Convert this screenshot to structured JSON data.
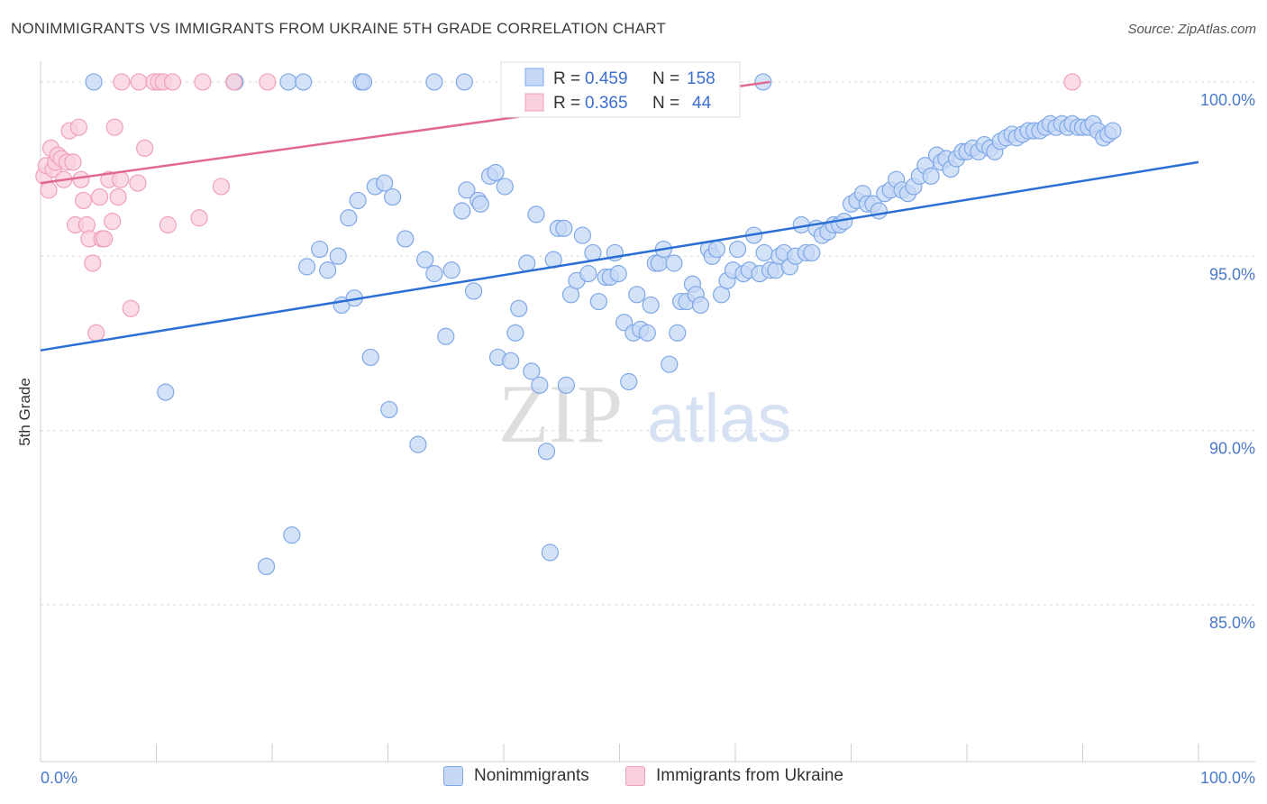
{
  "chart_data": {
    "type": "scatter",
    "title": "NONIMMIGRANTS VS IMMIGRANTS FROM UKRAINE 5TH GRADE CORRELATION CHART",
    "source": "Source: ZipAtlas.com",
    "xlabel": "",
    "ylabel": "5th Grade",
    "xlim": [
      0,
      100
    ],
    "ylim": [
      80.5,
      100.8
    ],
    "x_tick_labels": [
      "0.0%",
      "100.0%"
    ],
    "y_ticks": [
      {
        "value": 100,
        "label": "100.0%"
      },
      {
        "value": 95,
        "label": "95.0%"
      },
      {
        "value": 90,
        "label": "90.0%"
      },
      {
        "value": 85,
        "label": "85.0%"
      }
    ],
    "watermark": "ZIPatlas",
    "legend": [
      {
        "r_label": "R =",
        "r_value": "0.459",
        "n_label": "N =",
        "n_value": "158"
      },
      {
        "r_label": "R =",
        "r_value": "0.365",
        "n_label": "N =",
        "n_value": "44"
      }
    ],
    "series": [
      {
        "name": "Nonimmigrants",
        "color": "#7fa8e8",
        "fill": "#c5d8f5",
        "line_color": "#2b6ed4",
        "trend": {
          "x0": 0,
          "y0": 92.3,
          "x1": 100,
          "y1": 97.7
        },
        "points": [
          [
            4.6,
            100
          ],
          [
            16.8,
            100
          ],
          [
            21.4,
            100
          ],
          [
            22.7,
            100
          ],
          [
            27.7,
            100
          ],
          [
            27.9,
            100
          ],
          [
            34.0,
            100
          ],
          [
            36.6,
            100
          ],
          [
            46.0,
            100
          ],
          [
            62.4,
            100
          ],
          [
            10.8,
            91.1
          ],
          [
            19.5,
            86.1
          ],
          [
            21.7,
            87.0
          ],
          [
            23.0,
            94.7
          ],
          [
            24.1,
            95.2
          ],
          [
            24.8,
            94.6
          ],
          [
            25.7,
            95.0
          ],
          [
            26.0,
            93.6
          ],
          [
            26.6,
            96.1
          ],
          [
            27.1,
            93.8
          ],
          [
            27.4,
            96.6
          ],
          [
            28.5,
            92.1
          ],
          [
            28.9,
            97.0
          ],
          [
            29.7,
            97.1
          ],
          [
            30.1,
            90.6
          ],
          [
            30.4,
            96.7
          ],
          [
            31.5,
            95.5
          ],
          [
            32.6,
            89.6
          ],
          [
            33.2,
            94.9
          ],
          [
            34.0,
            94.5
          ],
          [
            35.0,
            92.7
          ],
          [
            35.5,
            94.6
          ],
          [
            36.4,
            96.3
          ],
          [
            36.8,
            96.9
          ],
          [
            37.4,
            94.0
          ],
          [
            37.8,
            96.6
          ],
          [
            38.0,
            96.5
          ],
          [
            38.8,
            97.3
          ],
          [
            39.3,
            97.4
          ],
          [
            39.5,
            92.1
          ],
          [
            40.1,
            97.0
          ],
          [
            40.6,
            92.0
          ],
          [
            41.0,
            92.8
          ],
          [
            41.3,
            93.5
          ],
          [
            42.0,
            94.8
          ],
          [
            42.4,
            91.7
          ],
          [
            42.8,
            96.2
          ],
          [
            43.1,
            91.3
          ],
          [
            43.7,
            89.4
          ],
          [
            44.0,
            86.5
          ],
          [
            44.3,
            94.9
          ],
          [
            44.7,
            95.8
          ],
          [
            45.2,
            95.8
          ],
          [
            45.4,
            91.3
          ],
          [
            45.8,
            93.9
          ],
          [
            46.3,
            94.3
          ],
          [
            46.8,
            95.6
          ],
          [
            47.3,
            94.5
          ],
          [
            47.7,
            95.1
          ],
          [
            48.2,
            93.7
          ],
          [
            48.8,
            94.4
          ],
          [
            49.2,
            94.4
          ],
          [
            49.6,
            95.1
          ],
          [
            49.9,
            94.5
          ],
          [
            50.4,
            93.1
          ],
          [
            50.8,
            91.4
          ],
          [
            51.2,
            92.8
          ],
          [
            51.5,
            93.9
          ],
          [
            51.8,
            92.9
          ],
          [
            52.4,
            92.8
          ],
          [
            52.7,
            93.6
          ],
          [
            53.1,
            94.8
          ],
          [
            53.4,
            94.8
          ],
          [
            53.8,
            95.2
          ],
          [
            54.3,
            91.9
          ],
          [
            54.7,
            94.8
          ],
          [
            55.0,
            92.8
          ],
          [
            55.3,
            93.7
          ],
          [
            55.8,
            93.7
          ],
          [
            56.3,
            94.2
          ],
          [
            56.6,
            93.9
          ],
          [
            57.0,
            93.6
          ],
          [
            57.7,
            95.2
          ],
          [
            58.0,
            95.0
          ],
          [
            58.4,
            95.2
          ],
          [
            58.8,
            93.9
          ],
          [
            59.3,
            94.3
          ],
          [
            59.8,
            94.6
          ],
          [
            60.2,
            95.2
          ],
          [
            60.7,
            94.5
          ],
          [
            61.2,
            94.6
          ],
          [
            61.6,
            95.6
          ],
          [
            62.1,
            94.5
          ],
          [
            62.5,
            95.1
          ],
          [
            63.0,
            94.6
          ],
          [
            63.5,
            94.6
          ],
          [
            63.8,
            95.0
          ],
          [
            64.2,
            95.1
          ],
          [
            64.7,
            94.7
          ],
          [
            65.2,
            95.0
          ],
          [
            65.7,
            95.9
          ],
          [
            66.1,
            95.1
          ],
          [
            66.6,
            95.1
          ],
          [
            67.0,
            95.8
          ],
          [
            67.5,
            95.6
          ],
          [
            68.0,
            95.7
          ],
          [
            68.5,
            95.9
          ],
          [
            69.0,
            95.9
          ],
          [
            69.4,
            96.0
          ],
          [
            70.0,
            96.5
          ],
          [
            70.5,
            96.6
          ],
          [
            71.0,
            96.8
          ],
          [
            71.4,
            96.5
          ],
          [
            71.9,
            96.5
          ],
          [
            72.4,
            96.3
          ],
          [
            72.9,
            96.8
          ],
          [
            73.4,
            96.9
          ],
          [
            73.9,
            97.2
          ],
          [
            74.4,
            96.9
          ],
          [
            74.9,
            96.8
          ],
          [
            75.4,
            97.0
          ],
          [
            75.9,
            97.3
          ],
          [
            76.4,
            97.6
          ],
          [
            76.9,
            97.3
          ],
          [
            77.4,
            97.9
          ],
          [
            77.8,
            97.7
          ],
          [
            78.2,
            97.8
          ],
          [
            78.6,
            97.5
          ],
          [
            79.1,
            97.8
          ],
          [
            79.6,
            98.0
          ],
          [
            80.0,
            98.0
          ],
          [
            80.5,
            98.1
          ],
          [
            81.0,
            98.0
          ],
          [
            81.5,
            98.2
          ],
          [
            82.0,
            98.1
          ],
          [
            82.4,
            98.0
          ],
          [
            82.9,
            98.3
          ],
          [
            83.4,
            98.4
          ],
          [
            83.9,
            98.5
          ],
          [
            84.3,
            98.4
          ],
          [
            84.8,
            98.5
          ],
          [
            85.3,
            98.6
          ],
          [
            85.8,
            98.6
          ],
          [
            86.3,
            98.6
          ],
          [
            86.8,
            98.7
          ],
          [
            87.2,
            98.8
          ],
          [
            87.7,
            98.7
          ],
          [
            88.2,
            98.8
          ],
          [
            88.7,
            98.7
          ],
          [
            89.1,
            98.8
          ],
          [
            89.6,
            98.7
          ],
          [
            90.0,
            98.7
          ],
          [
            90.5,
            98.7
          ],
          [
            90.9,
            98.8
          ],
          [
            91.3,
            98.6
          ],
          [
            91.8,
            98.4
          ],
          [
            92.2,
            98.5
          ],
          [
            92.6,
            98.6
          ]
        ]
      },
      {
        "name": "Immigrants from Ukraine",
        "color": "#f0a0b8",
        "fill": "#fad0dd",
        "line_color": "#e2698e",
        "trend": {
          "x0": 0,
          "y0": 97.1,
          "x1": 63.0,
          "y1": 100.0
        },
        "points": [
          [
            0.3,
            97.3
          ],
          [
            0.5,
            97.6
          ],
          [
            0.7,
            96.9
          ],
          [
            0.9,
            98.1
          ],
          [
            1.1,
            97.5
          ],
          [
            1.3,
            97.7
          ],
          [
            1.5,
            97.9
          ],
          [
            1.8,
            97.8
          ],
          [
            2.0,
            97.2
          ],
          [
            2.3,
            97.7
          ],
          [
            2.5,
            98.6
          ],
          [
            2.8,
            97.7
          ],
          [
            3.0,
            95.9
          ],
          [
            3.3,
            98.7
          ],
          [
            3.5,
            97.2
          ],
          [
            3.7,
            96.6
          ],
          [
            4.0,
            95.9
          ],
          [
            4.2,
            95.5
          ],
          [
            4.5,
            94.8
          ],
          [
            4.8,
            92.8
          ],
          [
            5.1,
            96.7
          ],
          [
            5.3,
            95.5
          ],
          [
            5.5,
            95.5
          ],
          [
            5.9,
            97.2
          ],
          [
            6.2,
            96.0
          ],
          [
            6.4,
            98.7
          ],
          [
            6.7,
            96.7
          ],
          [
            6.9,
            97.2
          ],
          [
            7.0,
            100
          ],
          [
            7.8,
            93.5
          ],
          [
            8.4,
            97.1
          ],
          [
            8.5,
            100
          ],
          [
            9.0,
            98.1
          ],
          [
            9.8,
            100
          ],
          [
            10.2,
            100
          ],
          [
            10.6,
            100
          ],
          [
            11.0,
            95.9
          ],
          [
            11.4,
            100
          ],
          [
            13.7,
            96.1
          ],
          [
            14.0,
            100
          ],
          [
            15.6,
            97.0
          ],
          [
            16.7,
            100
          ],
          [
            19.6,
            100
          ],
          [
            89.1,
            100
          ]
        ]
      }
    ]
  }
}
